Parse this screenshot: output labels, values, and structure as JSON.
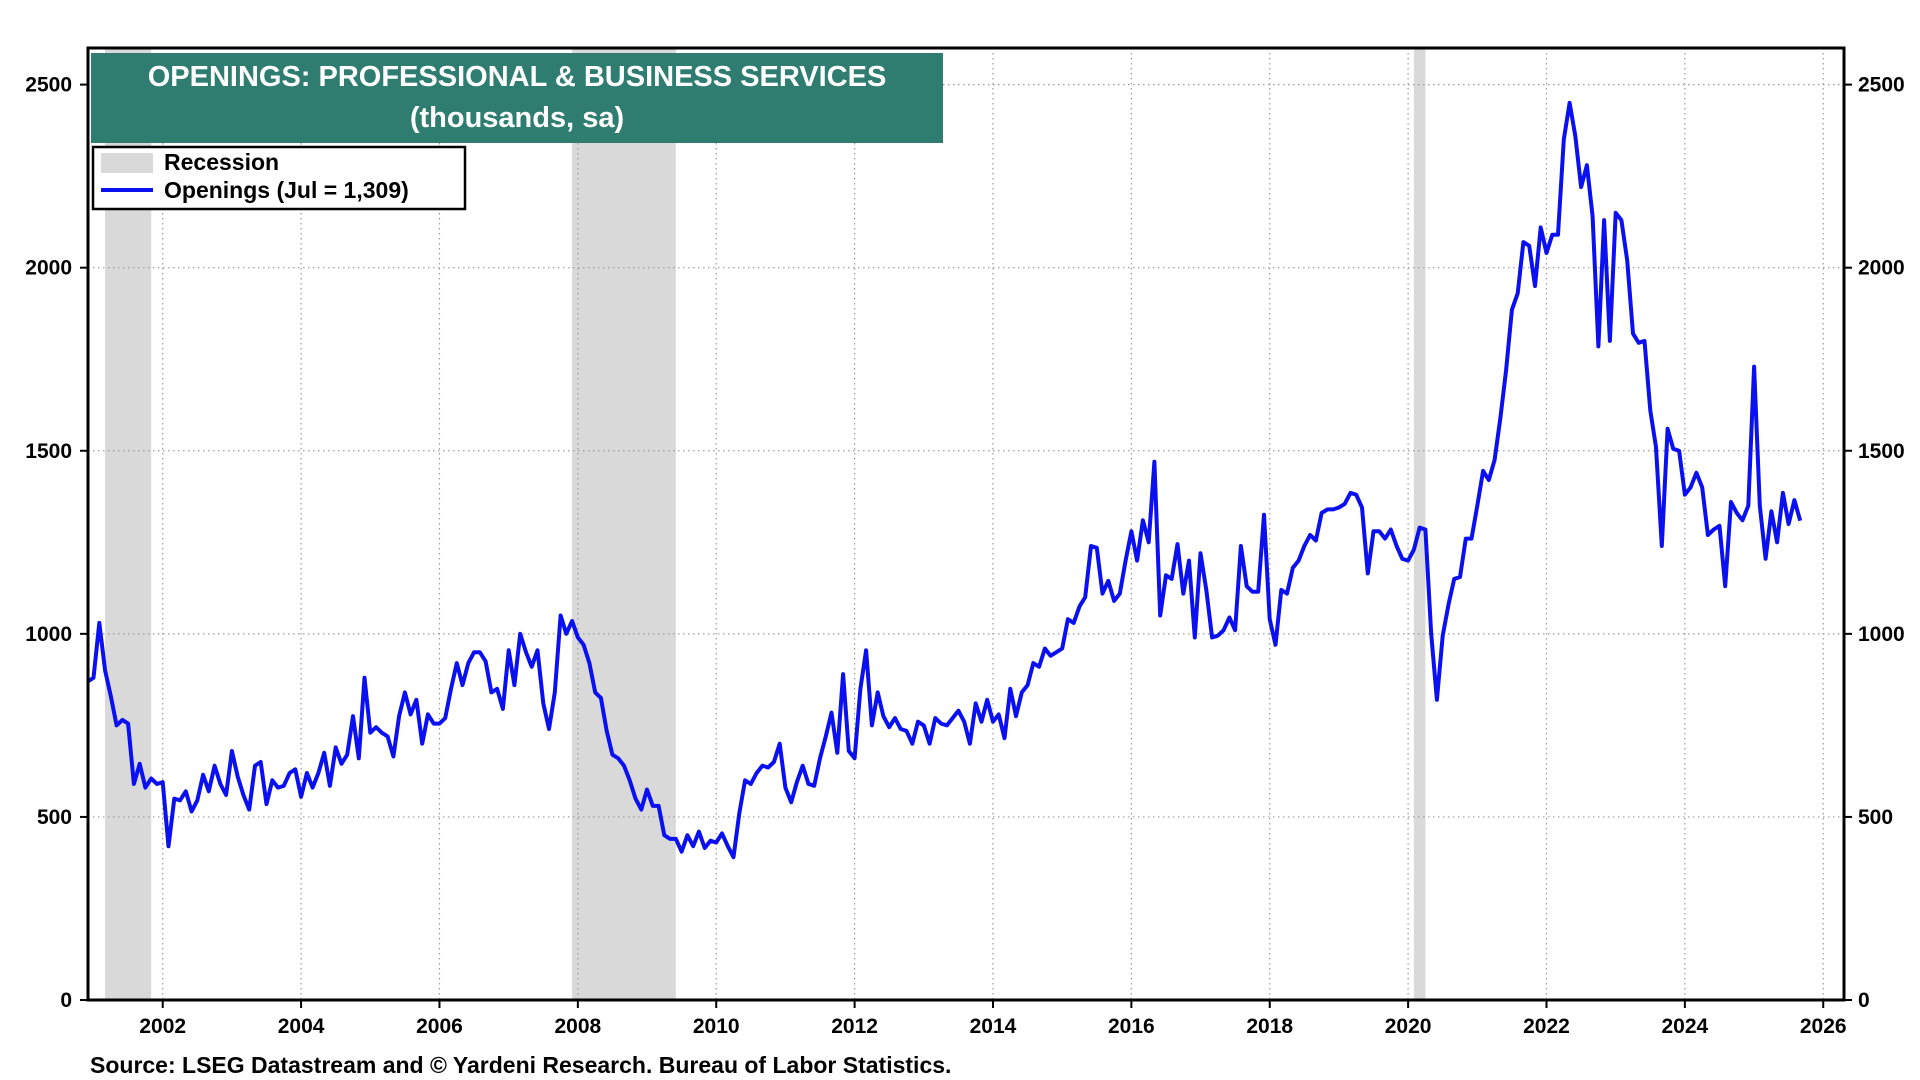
{
  "chart_data": {
    "type": "line",
    "title": "OPENINGS: PROFESSIONAL & BUSINESS SERVICES",
    "subtitle": "(thousands, sa)",
    "source": "Source: LSEG Datastream and © Yardeni Research. Bureau of Labor Statistics.",
    "legend": {
      "placement": "top-left",
      "recession_label": "Recession",
      "series_label": "Openings (Jul = 1,309)"
    },
    "ylim": [
      0,
      2600
    ],
    "yticks": [
      "0",
      "500",
      "1000",
      "1500",
      "2000",
      "2500"
    ],
    "xlim": [
      2000.92,
      2026.3
    ],
    "xticks": [
      "2002",
      "2004",
      "2006",
      "2008",
      "2010",
      "2012",
      "2014",
      "2016",
      "2018",
      "2020",
      "2022",
      "2024",
      "2026"
    ],
    "grid": true,
    "colors": {
      "series": "#0b10f0",
      "recession": "#d9d9d9",
      "title_bg": "#2e7d70"
    },
    "recessions": [
      {
        "start": "2001-03",
        "end": "2001-11"
      },
      {
        "start": "2007-12",
        "end": "2009-06"
      },
      {
        "start": "2020-02",
        "end": "2020-04"
      }
    ],
    "series": [
      {
        "name": "Openings (Jul = 1,309)",
        "start": "2000-12",
        "frequency": "monthly",
        "values": [
          870,
          880,
          1030,
          900,
          830,
          750,
          765,
          755,
          590,
          645,
          580,
          605,
          590,
          595,
          420,
          550,
          545,
          570,
          515,
          545,
          615,
          570,
          640,
          590,
          560,
          680,
          610,
          560,
          520,
          640,
          650,
          535,
          600,
          580,
          585,
          620,
          630,
          555,
          620,
          580,
          620,
          675,
          585,
          690,
          645,
          670,
          775,
          660,
          880,
          730,
          745,
          730,
          720,
          665,
          775,
          840,
          780,
          820,
          700,
          780,
          755,
          755,
          770,
          850,
          920,
          860,
          920,
          950,
          950,
          925,
          840,
          850,
          795,
          955,
          860,
          1000,
          950,
          910,
          955,
          810,
          740,
          840,
          1050,
          1000,
          1035,
          990,
          970,
          920,
          840,
          825,
          735,
          670,
          660,
          640,
          600,
          550,
          520,
          575,
          530,
          530,
          450,
          440,
          440,
          405,
          450,
          420,
          460,
          415,
          435,
          430,
          455,
          420,
          390,
          510,
          600,
          590,
          620,
          640,
          635,
          650,
          700,
          580,
          540,
          595,
          640,
          590,
          585,
          660,
          720,
          785,
          675,
          890,
          680,
          660,
          850,
          955,
          750,
          840,
          775,
          745,
          770,
          740,
          735,
          700,
          760,
          750,
          700,
          770,
          755,
          750,
          770,
          790,
          760,
          700,
          810,
          760,
          820,
          760,
          780,
          715,
          850,
          775,
          840,
          860,
          920,
          910,
          960,
          940,
          950,
          960,
          1040,
          1030,
          1075,
          1100,
          1240,
          1235,
          1110,
          1145,
          1090,
          1110,
          1200,
          1280,
          1200,
          1310,
          1250,
          1470,
          1050,
          1160,
          1150,
          1245,
          1110,
          1200,
          990,
          1220,
          1120,
          990,
          995,
          1010,
          1045,
          1010,
          1240,
          1130,
          1115,
          1115,
          1325,
          1040,
          970,
          1120,
          1110,
          1180,
          1200,
          1240,
          1270,
          1255,
          1330,
          1340,
          1340,
          1345,
          1355,
          1385,
          1380,
          1345,
          1165,
          1280,
          1280,
          1260,
          1285,
          1240,
          1205,
          1200,
          1230,
          1290,
          1285,
          1000,
          820,
          995,
          1080,
          1150,
          1155,
          1260,
          1260,
          1350,
          1445,
          1420,
          1475,
          1590,
          1720,
          1885,
          1930,
          2070,
          2060,
          1950,
          2110,
          2040,
          2090,
          2090,
          2350,
          2450,
          2360,
          2220,
          2280,
          2140,
          1785,
          2130,
          1800,
          2150,
          2130,
          2020,
          1820,
          1795,
          1800,
          1610,
          1510,
          1240,
          1560,
          1505,
          1500,
          1380,
          1400,
          1440,
          1400,
          1270,
          1285,
          1295,
          1130,
          1360,
          1330,
          1310,
          1350,
          1730,
          1350,
          1205,
          1335,
          1250,
          1385,
          1300,
          1365,
          1309
        ]
      }
    ]
  }
}
